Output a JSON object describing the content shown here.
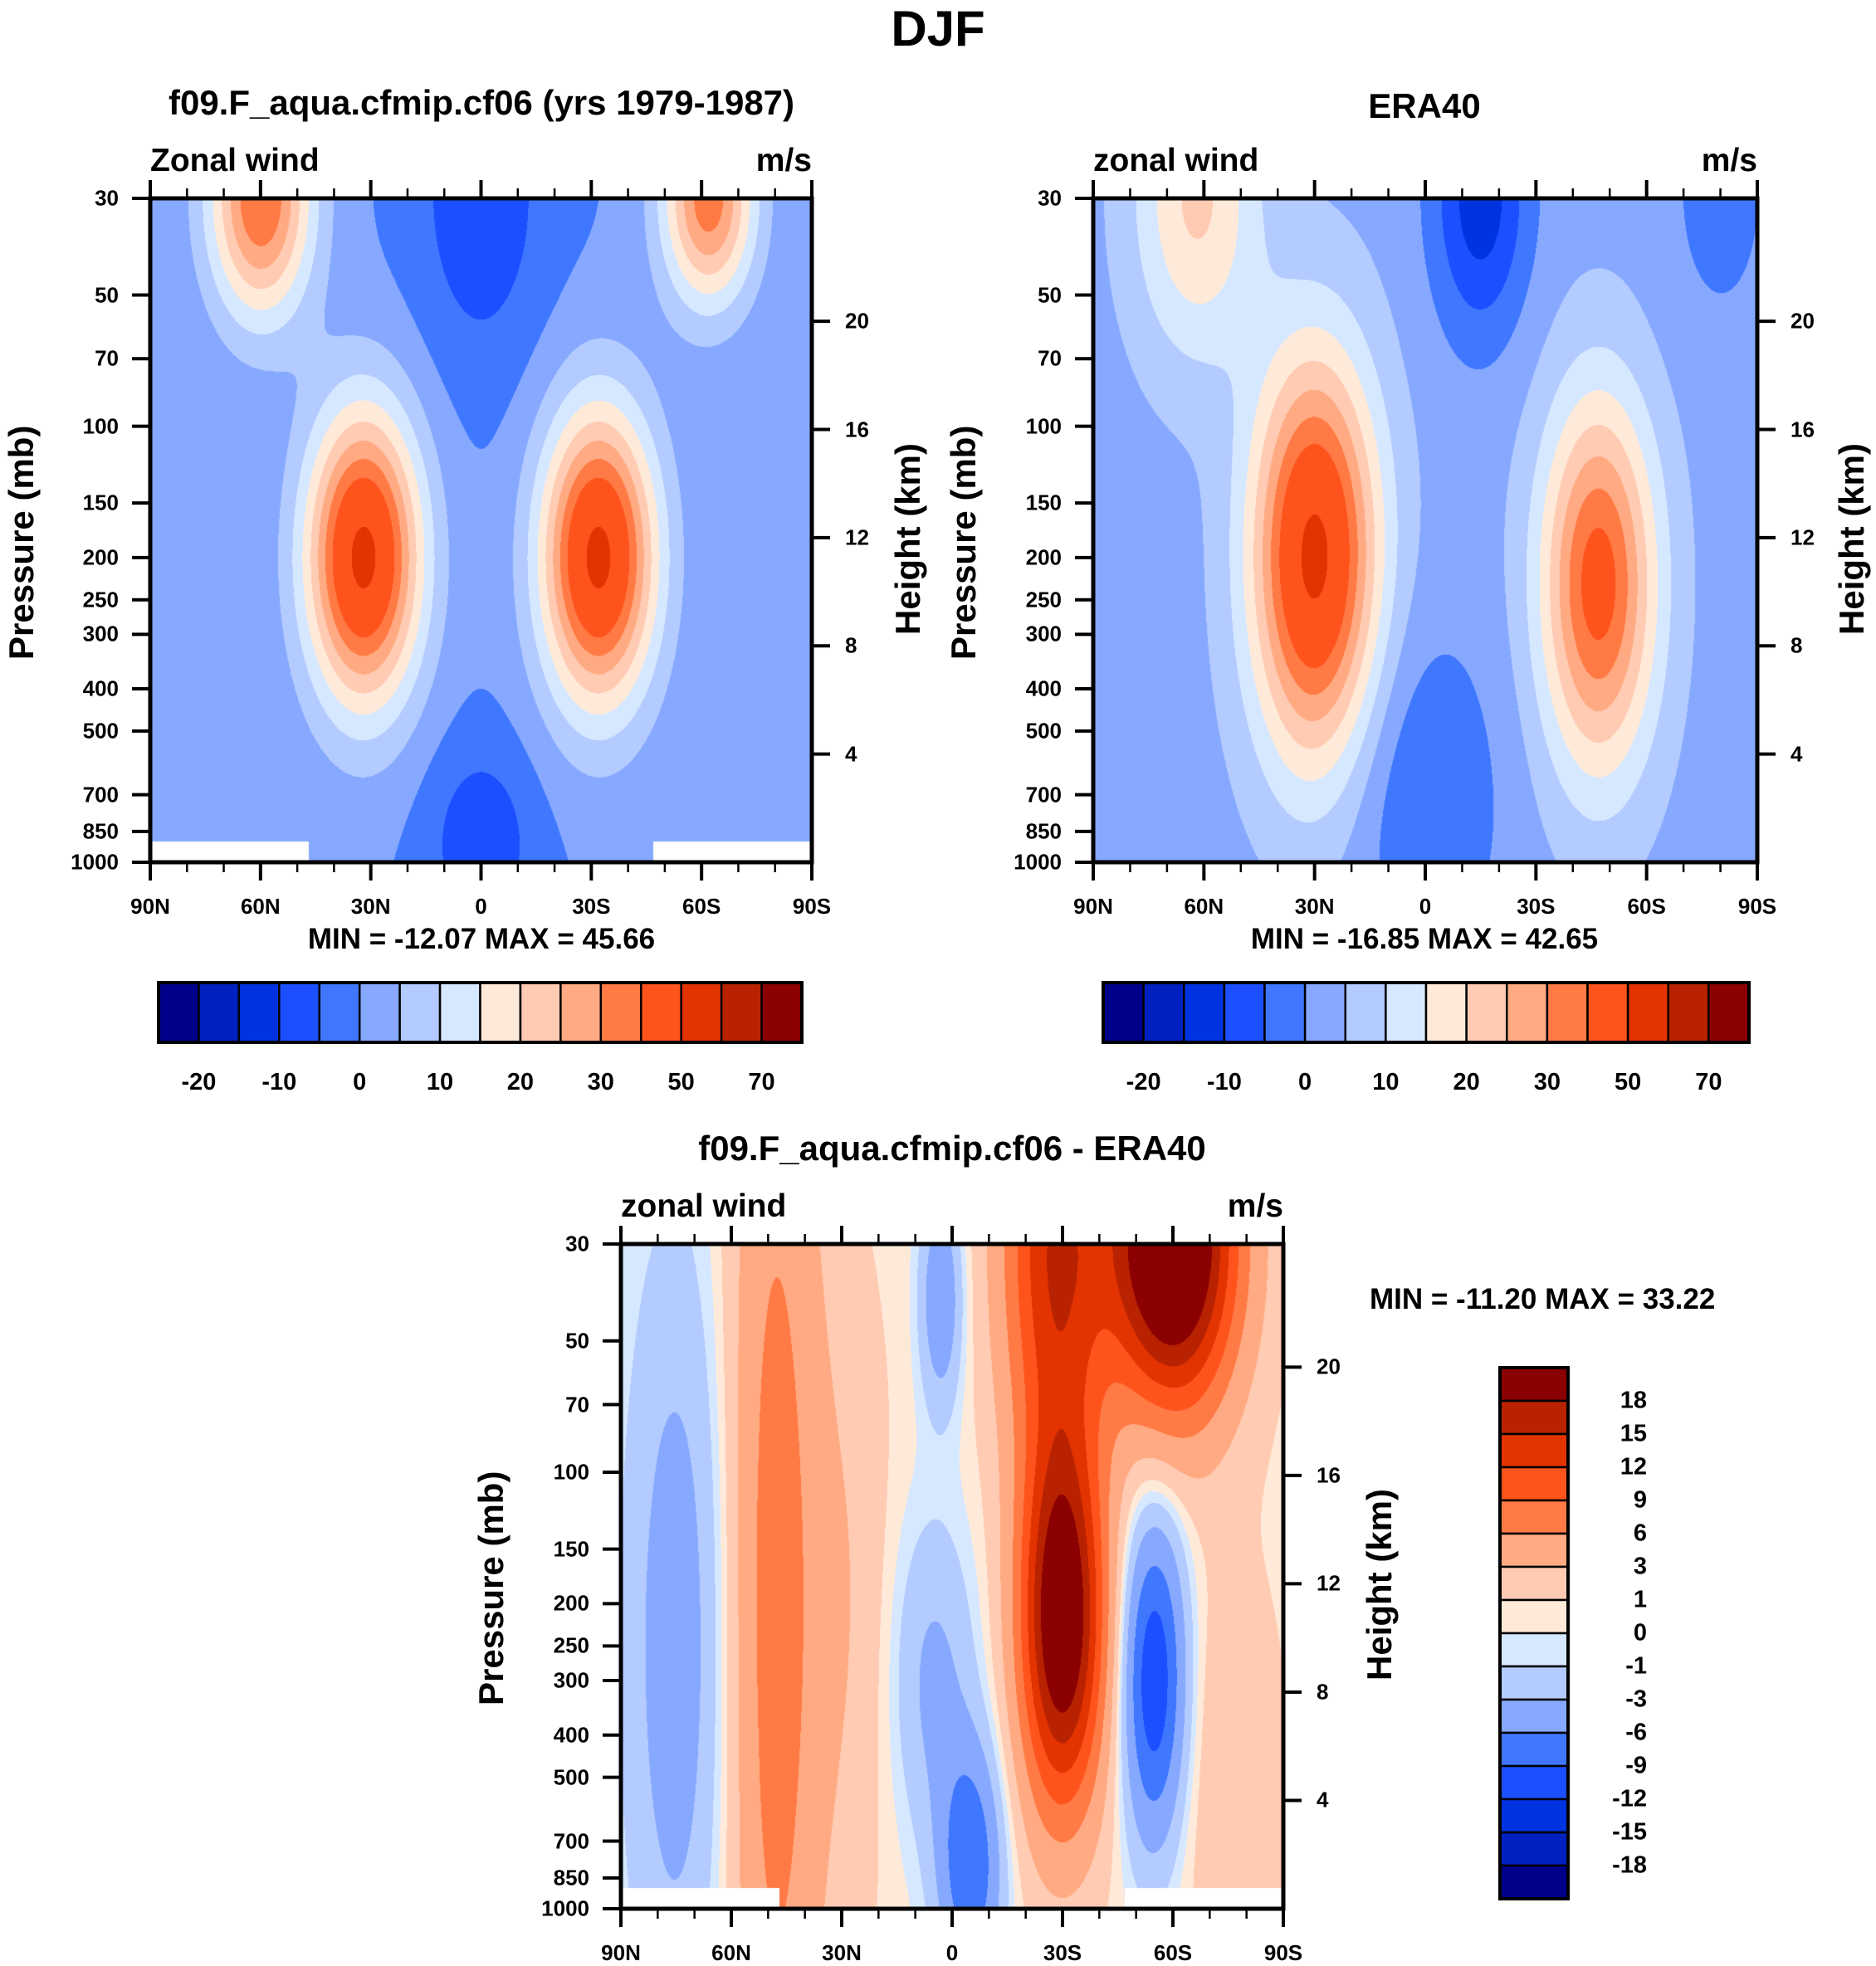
{
  "figure": {
    "title": "DJF"
  },
  "chart_data": [
    {
      "type": "heatmap",
      "id": "model",
      "title": "f09.F_aqua.cfmip.cf06 (yrs 1979-1987)",
      "left_string": "Zonal wind",
      "right_string": "m/s",
      "ylabel": "Pressure (mb)",
      "ylabel_right": "Height (km)",
      "x_ticks": [
        "90N",
        "60N",
        "30N",
        "0",
        "30S",
        "60S",
        "90S"
      ],
      "x_tick_values": [
        90,
        60,
        30,
        0,
        -30,
        -60,
        -90
      ],
      "xlim": [
        90,
        -90
      ],
      "y_ticks": [
        30,
        50,
        70,
        100,
        150,
        200,
        250,
        300,
        400,
        500,
        700,
        850,
        1000
      ],
      "ylim": [
        30,
        1000
      ],
      "y_right_ticks": [
        4,
        8,
        12,
        16,
        20
      ],
      "min": -12.07,
      "max": 45.66,
      "minmax_text": "MIN = -12.07  MAX =  45.66",
      "levels": [
        -25,
        -20,
        -15,
        -10,
        -5,
        0,
        5,
        10,
        15,
        20,
        25,
        30,
        40,
        50,
        60,
        70
      ],
      "colorbar_labels": [
        "-20",
        "-10",
        "0",
        "10",
        "20",
        "30",
        "50",
        "70"
      ],
      "colorbar_orientation": "horizontal",
      "missing_below_850": [
        [
          90,
          47
        ],
        [
          -47,
          -90
        ]
      ],
      "field_model": {
        "background": -5,
        "features": [
          {
            "lat": 32,
            "p": 200,
            "amp": 47,
            "wlat": 11,
            "wlogp": 0.55
          },
          {
            "lat": -32,
            "p": 200,
            "amp": 47,
            "wlat": 11,
            "wlogp": 0.55
          },
          {
            "lat": 60,
            "p": 30,
            "amp": 35,
            "wlat": 10,
            "wlogp": 0.45
          },
          {
            "lat": -62,
            "p": 30,
            "amp": 33,
            "wlat": 9,
            "wlogp": 0.4
          },
          {
            "lat": 0,
            "p": 30,
            "amp": -9,
            "wlat": 12,
            "wlogp": 0.6
          },
          {
            "lat": 0,
            "p": 900,
            "amp": -9,
            "wlat": 10,
            "wlogp": 0.35
          }
        ]
      }
    },
    {
      "type": "heatmap",
      "id": "obs",
      "title": "ERA40",
      "left_string": "zonal wind",
      "right_string": "m/s",
      "ylabel": "Pressure (mb)",
      "ylabel_right": "Height (km)",
      "x_ticks": [
        "90N",
        "60N",
        "30N",
        "0",
        "30S",
        "60S",
        "90S"
      ],
      "x_tick_values": [
        90,
        60,
        30,
        0,
        -30,
        -60,
        -90
      ],
      "xlim": [
        90,
        -90
      ],
      "y_ticks": [
        30,
        50,
        70,
        100,
        150,
        200,
        250,
        300,
        400,
        500,
        700,
        850,
        1000
      ],
      "ylim": [
        30,
        1000
      ],
      "y_right_ticks": [
        4,
        8,
        12,
        16,
        20
      ],
      "min": -16.85,
      "max": 42.65,
      "minmax_text": "MIN = -16.85  MAX =  42.65",
      "levels": [
        -25,
        -20,
        -15,
        -10,
        -5,
        0,
        5,
        10,
        15,
        20,
        25,
        30,
        40,
        50,
        60,
        70
      ],
      "colorbar_labels": [
        "-20",
        "-10",
        "0",
        "10",
        "20",
        "30",
        "50",
        "70"
      ],
      "colorbar_orientation": "horizontal",
      "field_model": {
        "background": -2,
        "features": [
          {
            "lat": 30,
            "p": 200,
            "amp": 44,
            "wlat": 12,
            "wlogp": 0.75
          },
          {
            "lat": -47,
            "p": 230,
            "amp": 35,
            "wlat": 11,
            "wlogp": 0.7
          },
          {
            "lat": 62,
            "p": 30,
            "amp": 18,
            "wlat": 12,
            "wlogp": 0.6
          },
          {
            "lat": -15,
            "p": 30,
            "amp": -16,
            "wlat": 9,
            "wlogp": 0.5
          },
          {
            "lat": 0,
            "p": 700,
            "amp": -8,
            "wlat": 14,
            "wlogp": 0.6
          },
          {
            "lat": -80,
            "p": 30,
            "amp": -5,
            "wlat": 10,
            "wlogp": 0.5
          }
        ]
      }
    },
    {
      "type": "heatmap",
      "id": "diff",
      "title": "f09.F_aqua.cfmip.cf06 - ERA40",
      "left_string": "zonal wind",
      "right_string": "m/s",
      "ylabel": "Pressure (mb)",
      "ylabel_right": "Height (km)",
      "x_ticks": [
        "90N",
        "60N",
        "30N",
        "0",
        "30S",
        "60S",
        "90S"
      ],
      "x_tick_values": [
        90,
        60,
        30,
        0,
        -30,
        -60,
        -90
      ],
      "xlim": [
        90,
        -90
      ],
      "y_ticks": [
        30,
        50,
        70,
        100,
        150,
        200,
        250,
        300,
        400,
        500,
        700,
        850,
        1000
      ],
      "ylim": [
        30,
        1000
      ],
      "y_right_ticks": [
        4,
        8,
        12,
        16,
        20
      ],
      "min": -11.2,
      "max": 33.22,
      "minmax_text": "MIN = -11.20  MAX =  33.22",
      "levels": [
        -18,
        -15,
        -12,
        -9,
        -6,
        -3,
        -1,
        0,
        1,
        3,
        6,
        9,
        12,
        15,
        18
      ],
      "colorbar_labels": [
        "18",
        "15",
        "12",
        "9",
        "6",
        "3",
        "1",
        "0",
        "-1",
        "-3",
        "-6",
        "-9",
        "-12",
        "-15",
        "-18"
      ],
      "colorbar_orientation": "vertical",
      "missing_below_850": [
        [
          90,
          47
        ],
        [
          -47,
          -90
        ]
      ],
      "field_model": {
        "background": 0.5,
        "features": [
          {
            "lat": 48,
            "p": 200,
            "amp": 7,
            "wlat": 9,
            "wlogp": 2.5
          },
          {
            "lat": 75,
            "p": 250,
            "amp": -5,
            "wlat": 10,
            "wlogp": 1.5
          },
          {
            "lat": 28,
            "p": 200,
            "amp": 2,
            "wlat": 8,
            "wlogp": 1.2
          },
          {
            "lat": -30,
            "p": 220,
            "amp": 22,
            "wlat": 8,
            "wlogp": 0.7
          },
          {
            "lat": -28,
            "p": 30,
            "amp": 14,
            "wlat": 10,
            "wlogp": 0.8
          },
          {
            "lat": -60,
            "p": 30,
            "amp": 26,
            "wlat": 12,
            "wlogp": 0.6
          },
          {
            "lat": -55,
            "p": 300,
            "amp": -12,
            "wlat": 6,
            "wlogp": 0.6
          },
          {
            "lat": 3,
            "p": 40,
            "amp": -6,
            "wlat": 4,
            "wlogp": 0.4
          },
          {
            "lat": -5,
            "p": 800,
            "amp": -9,
            "wlat": 6,
            "wlogp": 0.45
          },
          {
            "lat": 5,
            "p": 300,
            "amp": -4,
            "wlat": 8,
            "wlogp": 0.6
          },
          {
            "lat": -75,
            "p": 500,
            "amp": 2,
            "wlat": 10,
            "wlogp": 0.8
          }
        ]
      }
    }
  ],
  "palette": [
    "#00008b",
    "#0020bf",
    "#0033e0",
    "#1c4fff",
    "#4077ff",
    "#86a9ff",
    "#b3cbff",
    "#d6e8ff",
    "#ffead9",
    "#ffcbb3",
    "#ffaa82",
    "#ff7a45",
    "#ff531c",
    "#e33300",
    "#b82200",
    "#8b0000"
  ]
}
